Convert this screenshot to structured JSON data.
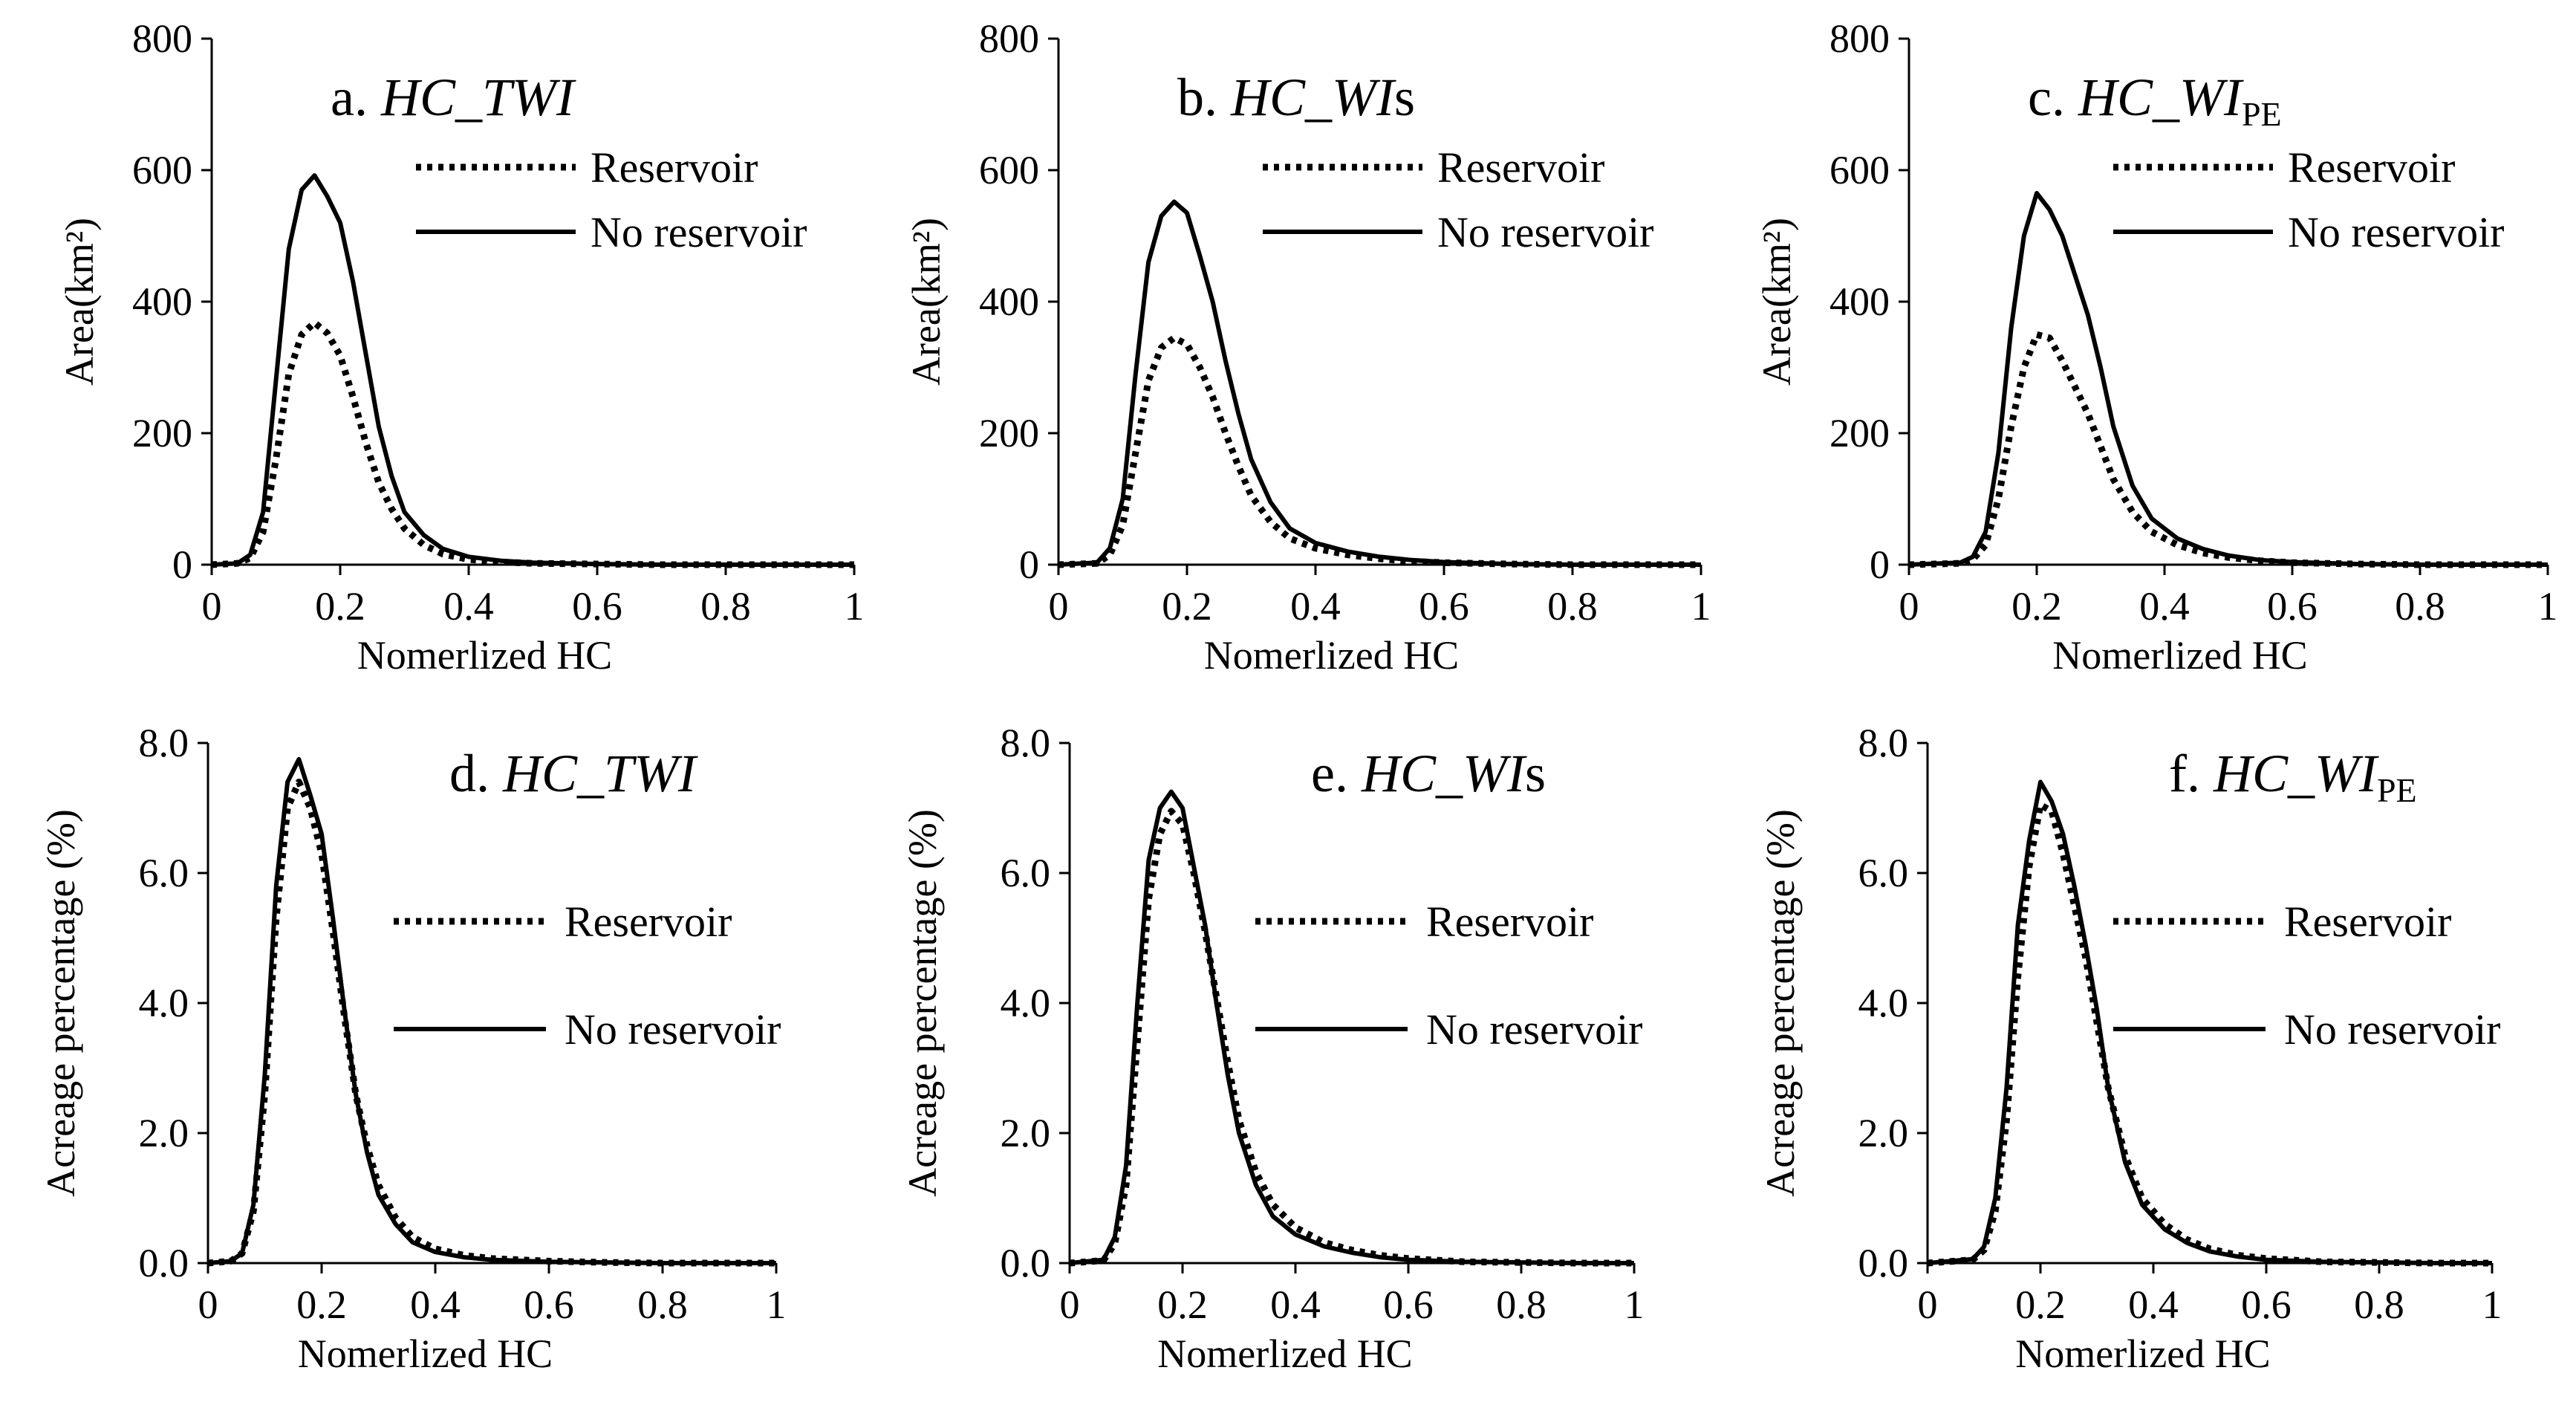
{
  "chart_data": [
    {
      "id": "a",
      "type": "line",
      "title": {
        "prefix": "a. ",
        "italic": "HC_TWI",
        "suffix": "",
        "sub": ""
      },
      "xlabel": "Nomerlized HC",
      "ylabel": "Area(km²)",
      "xlim": [
        0,
        1
      ],
      "ylim": [
        0,
        800
      ],
      "xticks": [
        "0",
        "0.2",
        "0.4",
        "0.6",
        "0.8",
        "1"
      ],
      "yticks": [
        "0",
        "200",
        "400",
        "600",
        "800"
      ],
      "legend": [
        "Reservoir",
        "No reservoir"
      ],
      "series": [
        {
          "name": "Reservoir",
          "style": "dotted",
          "x": [
            0,
            0.04,
            0.06,
            0.08,
            0.1,
            0.12,
            0.14,
            0.16,
            0.18,
            0.2,
            0.22,
            0.24,
            0.26,
            0.28,
            0.3,
            0.33,
            0.36,
            0.4,
            0.45,
            0.5,
            0.6,
            0.7,
            0.8,
            0.9,
            1.0
          ],
          "y": [
            0,
            2,
            10,
            50,
            160,
            290,
            350,
            368,
            352,
            318,
            255,
            185,
            125,
            85,
            55,
            30,
            16,
            8,
            4,
            2,
            1,
            0,
            0,
            0,
            0
          ]
        },
        {
          "name": "No reservoir",
          "style": "solid",
          "x": [
            0,
            0.04,
            0.06,
            0.08,
            0.1,
            0.12,
            0.14,
            0.16,
            0.18,
            0.2,
            0.22,
            0.24,
            0.26,
            0.28,
            0.3,
            0.33,
            0.36,
            0.4,
            0.45,
            0.5,
            0.6,
            0.7,
            0.8,
            0.9,
            1.0
          ],
          "y": [
            0,
            2,
            15,
            80,
            280,
            480,
            570,
            592,
            560,
            520,
            430,
            320,
            210,
            135,
            80,
            45,
            24,
            12,
            6,
            3,
            1,
            0,
            0,
            0,
            0
          ]
        }
      ]
    },
    {
      "id": "b",
      "type": "line",
      "title": {
        "prefix": "b. ",
        "italic": "HC_WI",
        "suffix": "s",
        "sub": ""
      },
      "xlabel": "Nomerlized HC",
      "ylabel": "Area(km²)",
      "xlim": [
        0,
        1
      ],
      "ylim": [
        0,
        800
      ],
      "xticks": [
        "0",
        "0.2",
        "0.4",
        "0.6",
        "0.8",
        "1"
      ],
      "yticks": [
        "0",
        "200",
        "400",
        "600",
        "800"
      ],
      "legend": [
        "Reservoir",
        "No reservoir"
      ],
      "series": [
        {
          "name": "Reservoir",
          "style": "dotted",
          "x": [
            0,
            0.06,
            0.08,
            0.1,
            0.12,
            0.14,
            0.16,
            0.18,
            0.2,
            0.22,
            0.24,
            0.26,
            0.28,
            0.3,
            0.33,
            0.36,
            0.4,
            0.45,
            0.5,
            0.55,
            0.6,
            0.7,
            0.8,
            0.9,
            1.0
          ],
          "y": [
            0,
            2,
            15,
            60,
            170,
            280,
            330,
            345,
            335,
            300,
            255,
            200,
            150,
            105,
            65,
            40,
            25,
            15,
            9,
            5,
            3,
            1,
            0,
            0,
            0
          ]
        },
        {
          "name": "No reservoir",
          "style": "solid",
          "x": [
            0,
            0.06,
            0.08,
            0.1,
            0.12,
            0.14,
            0.16,
            0.18,
            0.2,
            0.22,
            0.24,
            0.26,
            0.28,
            0.3,
            0.33,
            0.36,
            0.4,
            0.45,
            0.5,
            0.55,
            0.6,
            0.7,
            0.8,
            0.9,
            1.0
          ],
          "y": [
            0,
            3,
            25,
            100,
            290,
            460,
            530,
            552,
            535,
            470,
            400,
            310,
            230,
            160,
            95,
            55,
            33,
            20,
            12,
            7,
            4,
            1,
            0,
            0,
            0
          ]
        }
      ]
    },
    {
      "id": "c",
      "type": "line",
      "title": {
        "prefix": "c. ",
        "italic": "HC_WI",
        "suffix": "",
        "sub": "PE"
      },
      "xlabel": "Nomerlized HC",
      "ylabel": "Area(km²)",
      "xlim": [
        0,
        1
      ],
      "ylim": [
        0,
        800
      ],
      "xticks": [
        "0",
        "0.2",
        "0.4",
        "0.6",
        "0.8",
        "1"
      ],
      "yticks": [
        "0",
        "200",
        "400",
        "600",
        "800"
      ],
      "legend": [
        "Reservoir",
        "No reservoir"
      ],
      "series": [
        {
          "name": "Reservoir",
          "style": "dotted",
          "x": [
            0,
            0.08,
            0.1,
            0.12,
            0.14,
            0.16,
            0.18,
            0.2,
            0.22,
            0.24,
            0.26,
            0.28,
            0.3,
            0.32,
            0.35,
            0.38,
            0.42,
            0.46,
            0.5,
            0.55,
            0.6,
            0.7,
            0.8,
            0.9,
            1.0
          ],
          "y": [
            0,
            2,
            8,
            30,
            100,
            210,
            300,
            350,
            345,
            310,
            270,
            230,
            180,
            130,
            80,
            50,
            30,
            18,
            11,
            6,
            3,
            1,
            0,
            0,
            0
          ]
        },
        {
          "name": "No reservoir",
          "style": "solid",
          "x": [
            0,
            0.08,
            0.1,
            0.12,
            0.14,
            0.16,
            0.18,
            0.2,
            0.22,
            0.24,
            0.26,
            0.28,
            0.3,
            0.32,
            0.35,
            0.38,
            0.42,
            0.46,
            0.5,
            0.55,
            0.6,
            0.7,
            0.8,
            0.9,
            1.0
          ],
          "y": [
            0,
            3,
            12,
            50,
            170,
            360,
            500,
            565,
            540,
            500,
            440,
            380,
            300,
            210,
            120,
            70,
            40,
            24,
            14,
            7,
            4,
            1,
            0,
            0,
            0
          ]
        }
      ]
    },
    {
      "id": "d",
      "type": "line",
      "title": {
        "prefix": "d. ",
        "italic": "HC_TWI",
        "suffix": "",
        "sub": ""
      },
      "xlabel": "Nomerlized HC",
      "ylabel": "Acreage percentage (%)",
      "xlim": [
        0,
        1
      ],
      "ylim": [
        0,
        8
      ],
      "xticks": [
        "0",
        "0.2",
        "0.4",
        "0.6",
        "0.8",
        "1"
      ],
      "yticks": [
        "0.0",
        "2.0",
        "4.0",
        "6.0",
        "8.0"
      ],
      "legend": [
        "Reservoir",
        "No reservoir"
      ],
      "series": [
        {
          "name": "Reservoir",
          "style": "dotted",
          "x": [
            0,
            0.04,
            0.06,
            0.08,
            0.1,
            0.12,
            0.14,
            0.16,
            0.18,
            0.2,
            0.22,
            0.24,
            0.26,
            0.28,
            0.3,
            0.33,
            0.36,
            0.4,
            0.45,
            0.5,
            0.6,
            0.7,
            0.8,
            0.9,
            1.0
          ],
          "y": [
            0,
            0.03,
            0.15,
            0.8,
            2.6,
            5.3,
            7.0,
            7.4,
            7.0,
            6.3,
            5.1,
            3.8,
            2.6,
            1.8,
            1.2,
            0.7,
            0.4,
            0.22,
            0.12,
            0.07,
            0.03,
            0.01,
            0,
            0,
            0
          ]
        },
        {
          "name": "No reservoir",
          "style": "solid",
          "x": [
            0,
            0.04,
            0.06,
            0.08,
            0.1,
            0.12,
            0.14,
            0.16,
            0.18,
            0.2,
            0.22,
            0.24,
            0.26,
            0.28,
            0.3,
            0.33,
            0.36,
            0.4,
            0.45,
            0.5,
            0.6,
            0.7,
            0.8,
            0.9,
            1.0
          ],
          "y": [
            0,
            0.03,
            0.15,
            0.9,
            2.9,
            5.8,
            7.4,
            7.75,
            7.2,
            6.6,
            5.3,
            3.9,
            2.6,
            1.7,
            1.05,
            0.6,
            0.32,
            0.17,
            0.09,
            0.05,
            0.02,
            0.01,
            0,
            0,
            0
          ]
        }
      ]
    },
    {
      "id": "e",
      "type": "line",
      "title": {
        "prefix": "e. ",
        "italic": "HC_WI",
        "suffix": "s",
        "sub": ""
      },
      "xlabel": "Nomerlized HC",
      "ylabel": "Acreage percentage (%)",
      "xlim": [
        0,
        1
      ],
      "ylim": [
        0,
        8
      ],
      "xticks": [
        "0",
        "0.2",
        "0.4",
        "0.6",
        "0.8",
        "1"
      ],
      "yticks": [
        "0.0",
        "2.0",
        "4.0",
        "6.0",
        "8.0"
      ],
      "legend": [
        "Reservoir",
        "No reservoir"
      ],
      "series": [
        {
          "name": "Reservoir",
          "style": "dotted",
          "x": [
            0,
            0.06,
            0.08,
            0.1,
            0.12,
            0.14,
            0.16,
            0.18,
            0.2,
            0.22,
            0.24,
            0.26,
            0.28,
            0.3,
            0.33,
            0.36,
            0.4,
            0.45,
            0.5,
            0.55,
            0.6,
            0.7,
            0.8,
            0.9,
            1.0
          ],
          "y": [
            0,
            0.04,
            0.3,
            1.2,
            3.4,
            5.6,
            6.6,
            6.95,
            6.75,
            6.0,
            5.1,
            4.1,
            3.1,
            2.2,
            1.4,
            0.9,
            0.55,
            0.32,
            0.2,
            0.12,
            0.07,
            0.02,
            0.01,
            0,
            0
          ]
        },
        {
          "name": "No reservoir",
          "style": "solid",
          "x": [
            0,
            0.06,
            0.08,
            0.1,
            0.12,
            0.14,
            0.16,
            0.18,
            0.2,
            0.22,
            0.24,
            0.26,
            0.28,
            0.3,
            0.33,
            0.36,
            0.4,
            0.45,
            0.5,
            0.55,
            0.6,
            0.7,
            0.8,
            0.9,
            1.0
          ],
          "y": [
            0,
            0.05,
            0.4,
            1.5,
            4.0,
            6.2,
            7.0,
            7.25,
            7.0,
            6.1,
            5.2,
            4.0,
            2.9,
            2.0,
            1.2,
            0.72,
            0.44,
            0.26,
            0.16,
            0.09,
            0.05,
            0.02,
            0.01,
            0,
            0
          ]
        }
      ]
    },
    {
      "id": "f",
      "type": "line",
      "title": {
        "prefix": "f. ",
        "italic": "HC_WI",
        "suffix": "",
        "sub": "PE"
      },
      "xlabel": "Nomerlized HC",
      "ylabel": "Acreage percentage (%)",
      "xlim": [
        0,
        1
      ],
      "ylim": [
        0,
        8
      ],
      "xticks": [
        "0",
        "0.2",
        "0.4",
        "0.6",
        "0.8",
        "1"
      ],
      "yticks": [
        "0.0",
        "2.0",
        "4.0",
        "6.0",
        "8.0"
      ],
      "legend": [
        "Reservoir",
        "No reservoir"
      ],
      "series": [
        {
          "name": "Reservoir",
          "style": "dotted",
          "x": [
            0,
            0.08,
            0.1,
            0.12,
            0.14,
            0.16,
            0.18,
            0.2,
            0.22,
            0.24,
            0.26,
            0.28,
            0.3,
            0.32,
            0.35,
            0.38,
            0.42,
            0.46,
            0.5,
            0.55,
            0.6,
            0.7,
            0.8,
            0.9,
            1.0
          ],
          "y": [
            0,
            0.05,
            0.2,
            0.8,
            2.2,
            4.4,
            6.1,
            7.05,
            6.95,
            6.3,
            5.5,
            4.7,
            3.7,
            2.7,
            1.65,
            1.0,
            0.6,
            0.36,
            0.22,
            0.12,
            0.07,
            0.02,
            0.01,
            0,
            0
          ]
        },
        {
          "name": "No reservoir",
          "style": "solid",
          "x": [
            0,
            0.08,
            0.1,
            0.12,
            0.14,
            0.16,
            0.18,
            0.2,
            0.22,
            0.24,
            0.26,
            0.28,
            0.3,
            0.32,
            0.35,
            0.38,
            0.42,
            0.46,
            0.5,
            0.55,
            0.6,
            0.7,
            0.8,
            0.9,
            1.0
          ],
          "y": [
            0,
            0.06,
            0.25,
            1.0,
            2.7,
            5.2,
            6.5,
            7.4,
            7.1,
            6.6,
            5.8,
            4.9,
            3.9,
            2.7,
            1.55,
            0.9,
            0.52,
            0.31,
            0.18,
            0.1,
            0.05,
            0.02,
            0.01,
            0,
            0
          ]
        }
      ]
    }
  ]
}
